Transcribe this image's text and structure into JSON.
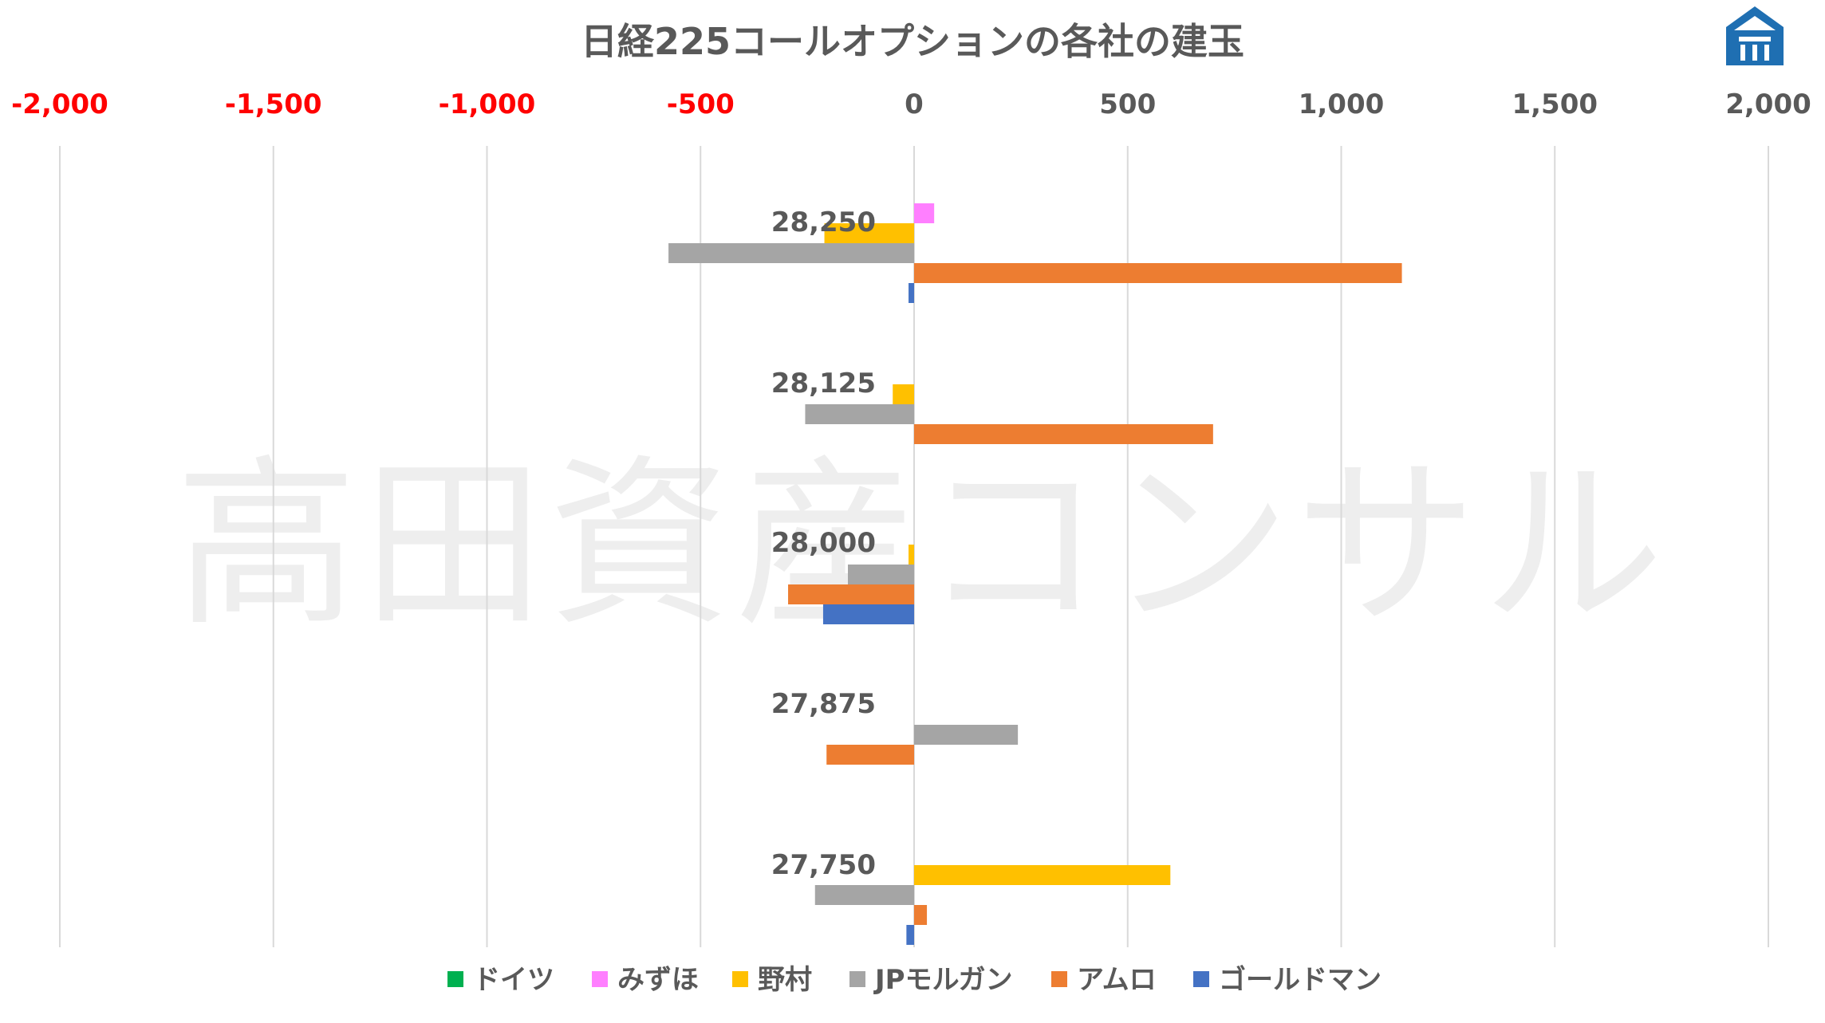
{
  "chart_data": {
    "type": "bar",
    "orientation": "horizontal",
    "title": "日経225コールオプションの各社の建玉",
    "watermark": "高田資産コンサル",
    "xlim": [
      -2000,
      2000
    ],
    "xticks": [
      -2000,
      -1500,
      -1000,
      -500,
      0,
      500,
      1000,
      1500,
      2000
    ],
    "xtick_labels": [
      "-2,000",
      "-1,500",
      "-1,000",
      "-500",
      "0",
      "500",
      "1,000",
      "1,500",
      "2,000"
    ],
    "negative_tick_color": "#FF0000",
    "positive_tick_color": "#595959",
    "grid": true,
    "legend_position": "bottom",
    "categories": [
      "28,250",
      "28,125",
      "28,000",
      "27,875",
      "27,750"
    ],
    "series": [
      {
        "name": "ドイツ",
        "color": "#00B050",
        "values": [
          0,
          0,
          0,
          0,
          0
        ]
      },
      {
        "name": "みずほ",
        "color": "#FF7FFF",
        "values": [
          47,
          0,
          0,
          0,
          0
        ]
      },
      {
        "name": "野村",
        "color": "#FFC000",
        "values": [
          -210,
          -50,
          -13,
          0,
          600
        ]
      },
      {
        "name": "JPモルガン",
        "color": "#A5A5A5",
        "values": [
          -575,
          -255,
          -155,
          243,
          -232
        ]
      },
      {
        "name": "アムロ",
        "color": "#ED7D31",
        "values": [
          1142,
          700,
          -295,
          -205,
          30
        ]
      },
      {
        "name": "ゴールドマン",
        "color": "#4472C4",
        "values": [
          -13,
          0,
          -213,
          0,
          -18
        ]
      }
    ]
  }
}
